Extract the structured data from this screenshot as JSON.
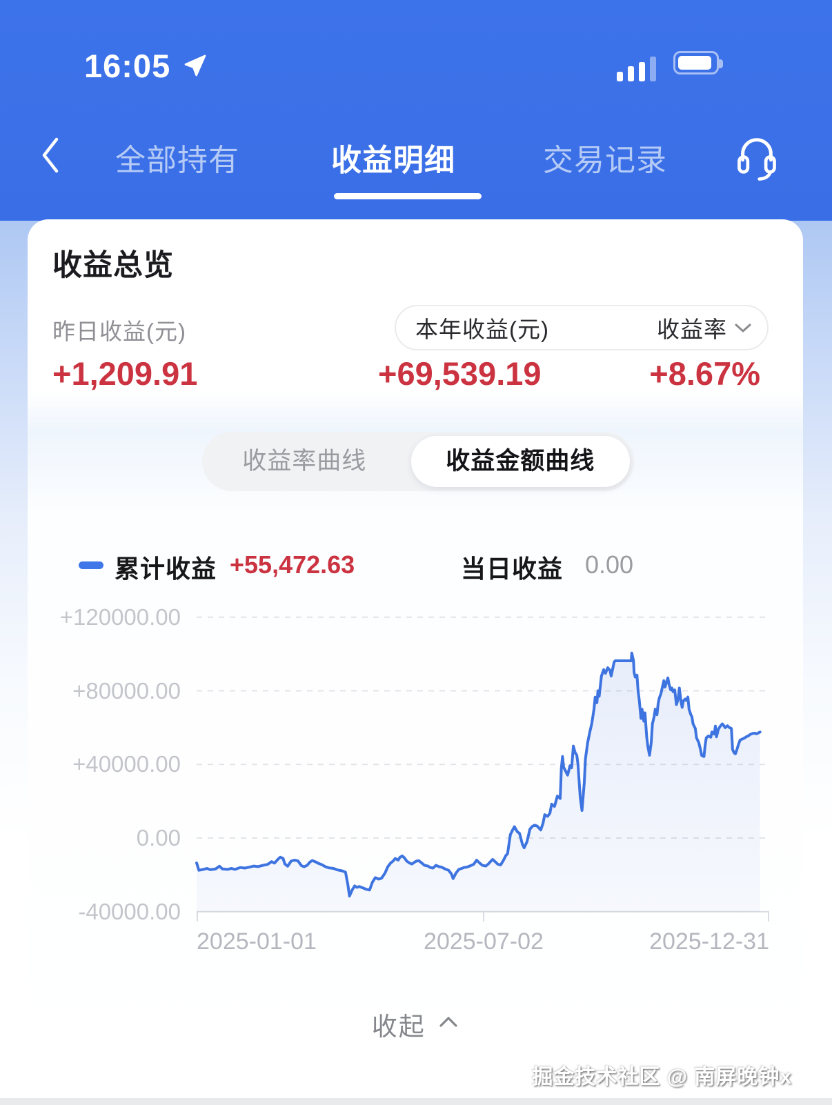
{
  "status_bar": {
    "time": "16:05"
  },
  "nav": {
    "tabs": [
      {
        "label": "全部持有",
        "active": false
      },
      {
        "label": "收益明细",
        "active": true
      },
      {
        "label": "交易记录",
        "active": false
      }
    ]
  },
  "overview": {
    "title": "收益总览",
    "yesterday_label": "昨日收益(元)",
    "yesterday_value": "+1,209.91",
    "year_label": "本年收益(元)",
    "rate_label": "收益率",
    "year_value": "+69,539.19",
    "rate_value": "+8.67%"
  },
  "toggle": {
    "options": [
      {
        "label": "收益率曲线",
        "active": false
      },
      {
        "label": "收益金额曲线",
        "active": true
      }
    ]
  },
  "legend": {
    "cumulative_label": "累计收益",
    "cumulative_value": "+55,472.63",
    "daily_label": "当日收益",
    "daily_value": "0.00"
  },
  "collapse_label": "收起",
  "watermark": "掘金技术社区 @ 南屏晚钟x",
  "colors": {
    "header_blue": "#3a6ee6",
    "accent_red": "#cb3341",
    "line_blue": "#3e74e0",
    "inactive_tab": "#b5cbf6"
  },
  "chart_data": {
    "type": "line",
    "title": "收益金额曲线(累计收益)",
    "x_range": [
      "2025-01-01",
      "2025-12-31"
    ],
    "xticks": [
      "2025-01-01",
      "2025-07-02",
      "2025-12-31"
    ],
    "ylim": [
      -40000,
      120000
    ],
    "ytick_values": [
      -40000,
      0,
      40000,
      80000,
      120000
    ],
    "ytick_labels": [
      "-40000.00",
      "0.00",
      "+40000.00",
      "+80000.00",
      "+120000.00"
    ],
    "grid": "horizontal dashed",
    "legend_position": "top",
    "series": [
      {
        "name": "累计收益",
        "color": "#3e74e0",
        "points": [
          [
            0.0,
            -13500
          ],
          [
            0.004,
            -17500
          ],
          [
            0.012,
            -17000
          ],
          [
            0.018,
            -16500
          ],
          [
            0.024,
            -17200
          ],
          [
            0.033,
            -16800
          ],
          [
            0.04,
            -15300
          ],
          [
            0.045,
            -16800
          ],
          [
            0.054,
            -17000
          ],
          [
            0.061,
            -16500
          ],
          [
            0.067,
            -17000
          ],
          [
            0.076,
            -16000
          ],
          [
            0.084,
            -16300
          ],
          [
            0.092,
            -15800
          ],
          [
            0.1,
            -15200
          ],
          [
            0.107,
            -15500
          ],
          [
            0.116,
            -14800
          ],
          [
            0.124,
            -14300
          ],
          [
            0.131,
            -12800
          ],
          [
            0.136,
            -13600
          ],
          [
            0.142,
            -11500
          ],
          [
            0.146,
            -10400
          ],
          [
            0.151,
            -11000
          ],
          [
            0.154,
            -14000
          ],
          [
            0.159,
            -15300
          ],
          [
            0.165,
            -12500
          ],
          [
            0.171,
            -12000
          ],
          [
            0.177,
            -12400
          ],
          [
            0.183,
            -15000
          ],
          [
            0.188,
            -15600
          ],
          [
            0.193,
            -14800
          ],
          [
            0.198,
            -13000
          ],
          [
            0.202,
            -12200
          ],
          [
            0.207,
            -12800
          ],
          [
            0.213,
            -13800
          ],
          [
            0.219,
            -14500
          ],
          [
            0.225,
            -15600
          ],
          [
            0.231,
            -16200
          ],
          [
            0.239,
            -16500
          ],
          [
            0.246,
            -17300
          ],
          [
            0.254,
            -17800
          ],
          [
            0.26,
            -18500
          ],
          [
            0.264,
            -25000
          ],
          [
            0.267,
            -31500
          ],
          [
            0.272,
            -28000
          ],
          [
            0.276,
            -26000
          ],
          [
            0.28,
            -26800
          ],
          [
            0.284,
            -26300
          ],
          [
            0.29,
            -27000
          ],
          [
            0.296,
            -27800
          ],
          [
            0.302,
            -28200
          ],
          [
            0.307,
            -24000
          ],
          [
            0.312,
            -21500
          ],
          [
            0.318,
            -22300
          ],
          [
            0.323,
            -21800
          ],
          [
            0.329,
            -19000
          ],
          [
            0.334,
            -15500
          ],
          [
            0.339,
            -13500
          ],
          [
            0.343,
            -12500
          ],
          [
            0.347,
            -11100
          ],
          [
            0.352,
            -12000
          ],
          [
            0.355,
            -10500
          ],
          [
            0.359,
            -9700
          ],
          [
            0.363,
            -10800
          ],
          [
            0.367,
            -12500
          ],
          [
            0.372,
            -13600
          ],
          [
            0.376,
            -14100
          ],
          [
            0.381,
            -13000
          ],
          [
            0.384,
            -12500
          ],
          [
            0.388,
            -12300
          ],
          [
            0.393,
            -13500
          ],
          [
            0.398,
            -14800
          ],
          [
            0.404,
            -15200
          ],
          [
            0.408,
            -16000
          ],
          [
            0.413,
            -16300
          ],
          [
            0.418,
            -14800
          ],
          [
            0.423,
            -15500
          ],
          [
            0.428,
            -15800
          ],
          [
            0.434,
            -16800
          ],
          [
            0.44,
            -17500
          ],
          [
            0.445,
            -19500
          ],
          [
            0.448,
            -22000
          ],
          [
            0.453,
            -19000
          ],
          [
            0.458,
            -17000
          ],
          [
            0.463,
            -16500
          ],
          [
            0.467,
            -16000
          ],
          [
            0.473,
            -15700
          ],
          [
            0.48,
            -14800
          ],
          [
            0.484,
            -14200
          ],
          [
            0.489,
            -12000
          ],
          [
            0.494,
            -13500
          ],
          [
            0.499,
            -14800
          ],
          [
            0.505,
            -15200
          ],
          [
            0.51,
            -13900
          ],
          [
            0.514,
            -12500
          ],
          [
            0.517,
            -11600
          ],
          [
            0.522,
            -13000
          ],
          [
            0.526,
            -14200
          ],
          [
            0.531,
            -14600
          ],
          [
            0.536,
            -12000
          ],
          [
            0.54,
            -9500
          ],
          [
            0.543,
            -8500
          ],
          [
            0.548,
            1900
          ],
          [
            0.552,
            4500
          ],
          [
            0.555,
            6200
          ],
          [
            0.56,
            3500
          ],
          [
            0.564,
            2500
          ],
          [
            0.569,
            -3500
          ],
          [
            0.572,
            -5300
          ],
          [
            0.577,
            -2000
          ],
          [
            0.582,
            4800
          ],
          [
            0.586,
            6300
          ],
          [
            0.59,
            7000
          ],
          [
            0.595,
            6500
          ],
          [
            0.601,
            4400
          ],
          [
            0.605,
            8000
          ],
          [
            0.608,
            12700
          ],
          [
            0.613,
            11800
          ],
          [
            0.617,
            13500
          ],
          [
            0.62,
            18400
          ],
          [
            0.625,
            17200
          ],
          [
            0.63,
            22800
          ],
          [
            0.635,
            21500
          ],
          [
            0.636,
            30000
          ],
          [
            0.637,
            38000
          ],
          [
            0.639,
            44300
          ],
          [
            0.641,
            38500
          ],
          [
            0.645,
            36000
          ],
          [
            0.648,
            34200
          ],
          [
            0.652,
            39300
          ],
          [
            0.655,
            38200
          ],
          [
            0.658,
            50000
          ],
          [
            0.661,
            46500
          ],
          [
            0.664,
            45000
          ],
          [
            0.666,
            40000
          ],
          [
            0.67,
            22000
          ],
          [
            0.673,
            15000
          ],
          [
            0.677,
            30000
          ],
          [
            0.679,
            43000
          ],
          [
            0.683,
            52000
          ],
          [
            0.687,
            58000
          ],
          [
            0.69,
            62000
          ],
          [
            0.694,
            70000
          ],
          [
            0.696,
            76500
          ],
          [
            0.699,
            73500
          ],
          [
            0.701,
            80000
          ],
          [
            0.703,
            77000
          ],
          [
            0.707,
            88000
          ],
          [
            0.711,
            91500
          ],
          [
            0.714,
            89500
          ],
          [
            0.718,
            92500
          ],
          [
            0.722,
            91000
          ],
          [
            0.724,
            88000
          ],
          [
            0.726,
            91000
          ],
          [
            0.729,
            95500
          ],
          [
            0.731,
            96300
          ],
          [
            0.759,
            96300
          ],
          [
            0.76,
            100500
          ],
          [
            0.763,
            96300
          ],
          [
            0.764,
            90000
          ],
          [
            0.766,
            87500
          ],
          [
            0.769,
            88500
          ],
          [
            0.771,
            80000
          ],
          [
            0.773,
            75000
          ],
          [
            0.776,
            65000
          ],
          [
            0.778,
            70000
          ],
          [
            0.781,
            63500
          ],
          [
            0.783,
            68000
          ],
          [
            0.786,
            55000
          ],
          [
            0.788,
            50000
          ],
          [
            0.791,
            45000
          ],
          [
            0.794,
            52000
          ],
          [
            0.796,
            62000
          ],
          [
            0.799,
            66000
          ],
          [
            0.801,
            70000
          ],
          [
            0.804,
            67000
          ],
          [
            0.806,
            73000
          ],
          [
            0.808,
            76000
          ],
          [
            0.811,
            78500
          ],
          [
            0.813,
            81500
          ],
          [
            0.816,
            85500
          ],
          [
            0.818,
            82000
          ],
          [
            0.82,
            84000
          ],
          [
            0.823,
            87000
          ],
          [
            0.825,
            83500
          ],
          [
            0.828,
            80500
          ],
          [
            0.83,
            81500
          ],
          [
            0.832,
            79500
          ],
          [
            0.835,
            80500
          ],
          [
            0.838,
            72500
          ],
          [
            0.841,
            75500
          ],
          [
            0.843,
            81500
          ],
          [
            0.846,
            74000
          ],
          [
            0.848,
            71000
          ],
          [
            0.85,
            74500
          ],
          [
            0.853,
            75500
          ],
          [
            0.855,
            74800
          ],
          [
            0.858,
            76600
          ],
          [
            0.86,
            70000
          ],
          [
            0.863,
            67100
          ],
          [
            0.865,
            65800
          ],
          [
            0.867,
            62000
          ],
          [
            0.871,
            59500
          ],
          [
            0.873,
            54400
          ],
          [
            0.877,
            51900
          ],
          [
            0.88,
            48000
          ],
          [
            0.882,
            44900
          ],
          [
            0.886,
            44300
          ],
          [
            0.888,
            50000
          ],
          [
            0.89,
            54400
          ],
          [
            0.894,
            55500
          ],
          [
            0.898,
            54800
          ],
          [
            0.9,
            57600
          ],
          [
            0.904,
            56500
          ],
          [
            0.906,
            60800
          ],
          [
            0.908,
            55000
          ],
          [
            0.911,
            58900
          ],
          [
            0.914,
            60500
          ],
          [
            0.918,
            62000
          ],
          [
            0.92,
            61400
          ],
          [
            0.923,
            60000
          ],
          [
            0.927,
            61000
          ],
          [
            0.93,
            60100
          ],
          [
            0.934,
            59500
          ],
          [
            0.936,
            48100
          ],
          [
            0.939,
            46200
          ],
          [
            0.941,
            45800
          ],
          [
            0.943,
            47500
          ],
          [
            0.946,
            50600
          ],
          [
            0.949,
            53200
          ],
          [
            0.953,
            53800
          ],
          [
            0.957,
            54400
          ],
          [
            0.96,
            55000
          ],
          [
            0.964,
            55600
          ],
          [
            0.967,
            56300
          ],
          [
            0.971,
            56800
          ],
          [
            0.975,
            57000
          ],
          [
            0.978,
            56600
          ],
          [
            0.982,
            57300
          ],
          [
            0.984,
            57600
          ]
        ]
      }
    ]
  }
}
